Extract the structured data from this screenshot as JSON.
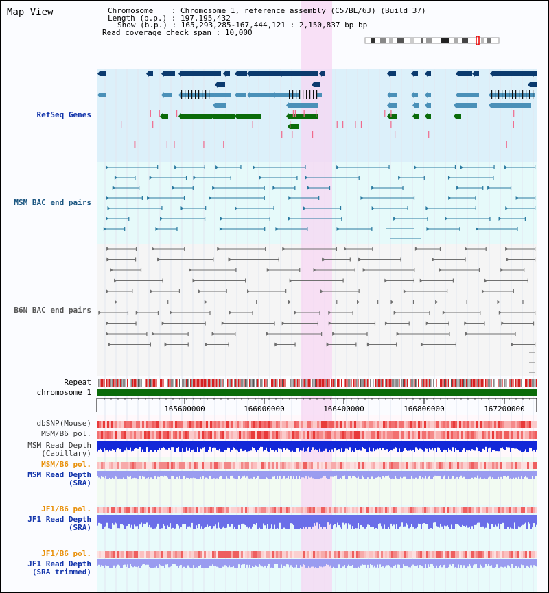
{
  "page": {
    "title": "Map View"
  },
  "header": {
    "chromosome_key": "Chromosome",
    "chromosome_value": "Chromosome 1, reference assembly (C57BL/6J) (Build 37)",
    "length_key": "Length (b.p.)",
    "length_value": "197,195,432",
    "show_key": "Show (b.p.)",
    "show_value": "165,293,285-167,444,121 : 2,150,837 bp",
    "span_key": "Read coverage check span",
    "span_value": "10,000"
  },
  "tracks": {
    "refseq": "RefSeq Genes",
    "msm_bac": "MSM BAC end pairs",
    "b6n_bac": "B6N BAC end pairs",
    "repeat": "Repeat",
    "chromosome": "chromosome 1",
    "dbsnp": "dbSNP(Mouse)",
    "msm_b6_pol": "MSM/B6 pol.",
    "msm_depth_cap_1": "MSM Read Depth",
    "msm_depth_cap_2": "(Capillary)",
    "msm_b6_pol2": "MSM/B6 pol.",
    "msm_depth_sra_1": "MSM Read Depth",
    "msm_depth_sra_2": "(SRA)",
    "jf1_b6_pol": "JF1/B6 pol.",
    "jf1_depth_sra_1": "JF1 Read Depth",
    "jf1_depth_sra_2": "(SRA)",
    "jf1_b6_pol2": "JF1/B6 pol.",
    "jf1_depth_trim_1": "JF1 Read Depth",
    "jf1_depth_trim_2": "(SRA trimmed)"
  },
  "axis": {
    "ticks": [
      "165600000",
      "166000000",
      "166400000",
      "166800000",
      "167200000"
    ]
  },
  "colors": {
    "refseq_bg": "#dcf0fa",
    "msm_bg": "#e6fafa",
    "b6n_bg": "#f5f5f5",
    "highlight": "#f7d7f3",
    "gene_dark": "#0b3a6e",
    "gene_mid": "#4a90b8",
    "gene_green": "#0a6b0a",
    "msm_pair": "#2a7aa0",
    "b6n_pair": "#707070",
    "label_blue": "#1133aa",
    "label_orange": "#e8900a",
    "label_gray": "#333333",
    "chrom_bar": "#0a6b0a"
  }
}
